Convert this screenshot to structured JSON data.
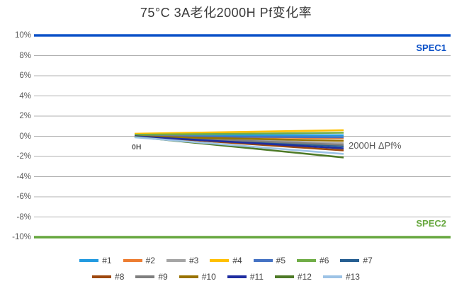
{
  "title": "75°C 3A老化2000H Pf变化率",
  "chart_data": {
    "type": "line",
    "title": "75°C 3A老化2000H Pf变化率",
    "x_categories": [
      "0H",
      "2000H"
    ],
    "ylim": [
      -10,
      10
    ],
    "yticks": [
      "10%",
      "8%",
      "6%",
      "4%",
      "2%",
      "0%",
      "-2%",
      "-4%",
      "-6%",
      "-8%",
      "-10%"
    ],
    "grid": true,
    "grid_color": "#b0b0b0",
    "legend_position": "bottom",
    "annotations": [
      {
        "text": "0H",
        "position": "series-start"
      },
      {
        "text": "2000H ΔPf%",
        "position": "series-end"
      }
    ],
    "spec_lines": [
      {
        "label": "SPEC1",
        "value": 10,
        "color": "#0d52c8"
      },
      {
        "label": "SPEC2",
        "value": -10,
        "color": "#66a73e"
      }
    ],
    "series": [
      {
        "name": "#1",
        "color": "#229ae0",
        "values": [
          0.1,
          0.1
        ]
      },
      {
        "name": "#2",
        "color": "#ed7d31",
        "values": [
          0.05,
          -0.2
        ]
      },
      {
        "name": "#3",
        "color": "#a5a5a5",
        "values": [
          0.0,
          -0.7
        ]
      },
      {
        "name": "#4",
        "color": "#ffc000",
        "values": [
          0.25,
          0.6
        ]
      },
      {
        "name": "#5",
        "color": "#4472c4",
        "values": [
          0.0,
          -0.1
        ]
      },
      {
        "name": "#6",
        "color": "#70ad47",
        "values": [
          0.15,
          0.35
        ]
      },
      {
        "name": "#7",
        "color": "#255e91",
        "values": [
          0.0,
          -1.0
        ]
      },
      {
        "name": "#8",
        "color": "#9e480e",
        "values": [
          0.0,
          -1.4
        ]
      },
      {
        "name": "#9",
        "color": "#7f7f7f",
        "values": [
          0.0,
          -0.85
        ]
      },
      {
        "name": "#10",
        "color": "#997300",
        "values": [
          0.0,
          -0.45
        ]
      },
      {
        "name": "#11",
        "color": "#1f2da0",
        "values": [
          0.0,
          -1.2
        ]
      },
      {
        "name": "#12",
        "color": "#4e7a27",
        "values": [
          -0.05,
          -2.1
        ]
      },
      {
        "name": "#13",
        "color": "#9dc3e6",
        "values": [
          -0.1,
          -1.75
        ]
      }
    ],
    "colors": {
      "title_text": "#3a3a3a",
      "axis_text": "#595959",
      "legend_text": "#404040"
    }
  }
}
